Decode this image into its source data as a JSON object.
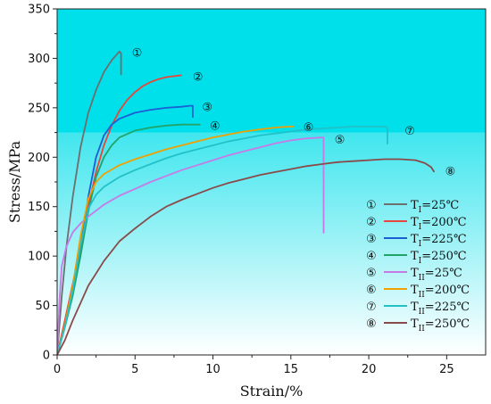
{
  "chart_data": {
    "type": "line",
    "xlabel": "Strain/%",
    "ylabel": "Stress/MPa",
    "xlim": [
      0,
      27.5
    ],
    "ylim": [
      0,
      350
    ],
    "xticks": [
      0,
      5,
      10,
      15,
      20,
      25
    ],
    "yticks": [
      0,
      50,
      100,
      150,
      200,
      250,
      300,
      350
    ],
    "background": {
      "top": "#00e0ea",
      "band_stress": 225,
      "bottom": "#ffffff"
    },
    "legend_position": "lower-right",
    "series": [
      {
        "marker": "①",
        "label_main": "T",
        "label_sub": "I",
        "label_rest": "=25℃",
        "color": "#6e6e6e",
        "x": [
          0,
          0.3,
          0.6,
          1.0,
          1.5,
          2.0,
          2.5,
          3.0,
          3.5,
          4.0,
          4.1,
          4.1
        ],
        "y": [
          0,
          60,
          110,
          160,
          210,
          245,
          268,
          286,
          298,
          307,
          305,
          283
        ],
        "marker_at": [
          4.8,
          307
        ]
      },
      {
        "marker": "②",
        "label_main": "T",
        "label_sub": "I",
        "label_rest": "=200℃",
        "color": "#e8453c",
        "x": [
          0,
          0.5,
          1.0,
          1.5,
          2.0,
          2.5,
          3.0,
          3.5,
          4.0,
          4.5,
          5.0,
          5.5,
          6.0,
          6.5,
          7.0,
          7.5,
          8.0
        ],
        "y": [
          0,
          35,
          72,
          110,
          150,
          185,
          212,
          232,
          247,
          258,
          266,
          272,
          276,
          279,
          281,
          282,
          283
        ],
        "marker_at": [
          8.7,
          283
        ]
      },
      {
        "marker": "③",
        "label_main": "T",
        "label_sub": "I",
        "label_rest": "=225℃",
        "color": "#1a5fd6",
        "x": [
          0,
          0.5,
          1.0,
          1.5,
          2.0,
          2.5,
          3.0,
          3.5,
          4.0,
          5.0,
          6.0,
          7.0,
          8.0,
          8.5,
          8.7,
          8.7
        ],
        "y": [
          0,
          30,
          65,
          108,
          160,
          200,
          222,
          233,
          239,
          245,
          248,
          250,
          251,
          252,
          252,
          240
        ],
        "marker_at": [
          9.3,
          252
        ]
      },
      {
        "marker": "④",
        "label_main": "T",
        "label_sub": "I",
        "label_rest": "=250℃",
        "color": "#20a46a",
        "x": [
          0,
          0.5,
          1.0,
          1.5,
          2.0,
          2.5,
          3.0,
          3.5,
          4.0,
          5.0,
          6.0,
          7.0,
          8.0,
          9.0,
          9.2
        ],
        "y": [
          0,
          28,
          60,
          100,
          145,
          180,
          200,
          212,
          220,
          227,
          230,
          232,
          233,
          233,
          233
        ],
        "marker_at": [
          9.8,
          233
        ]
      },
      {
        "marker": "⑤",
        "label_main": "T",
        "label_sub": "II",
        "label_rest": "=25℃",
        "color": "#c77ae6",
        "x": [
          0,
          0.15,
          0.3,
          0.6,
          1.0,
          1.5,
          2.0,
          3.0,
          4.0,
          5.0,
          6.0,
          7.0,
          8.0,
          9.0,
          10.0,
          11.0,
          12.0,
          13.0,
          14.0,
          15.0,
          16.0,
          17.0,
          17.1,
          17.1
        ],
        "y": [
          0,
          55,
          90,
          110,
          124,
          133,
          140,
          152,
          161,
          168,
          175,
          181,
          187,
          192,
          197,
          202,
          206,
          210,
          214,
          217,
          219,
          220,
          220,
          123
        ],
        "marker_at": [
          17.8,
          219
        ]
      },
      {
        "marker": "⑥",
        "label_main": "T",
        "label_sub": "II",
        "label_rest": "=200℃",
        "color": "#f0a000",
        "x": [
          0,
          0.5,
          1.0,
          1.5,
          2.0,
          2.5,
          3.0,
          4.0,
          5.0,
          6.0,
          7.0,
          8.0,
          9.0,
          10.0,
          11.0,
          12.0,
          13.0,
          14.0,
          15.0,
          15.2
        ],
        "y": [
          0,
          30,
          70,
          120,
          158,
          175,
          183,
          192,
          198,
          203,
          208,
          212,
          216,
          220,
          223,
          226,
          228,
          230,
          231,
          231
        ],
        "marker_at": [
          15.8,
          232
        ]
      },
      {
        "marker": "⑦",
        "label_main": "T",
        "label_sub": "II",
        "label_rest": "=225℃",
        "color": "#22c1c8",
        "x": [
          0,
          0.5,
          1.0,
          1.5,
          2.0,
          2.5,
          3.0,
          4.0,
          5.0,
          6.0,
          7.0,
          8.0,
          9.0,
          10.0,
          11.0,
          12.0,
          13.0,
          14.0,
          15.0,
          16.0,
          17.0,
          18.0,
          19.0,
          20.0,
          21.0,
          21.2,
          21.2
        ],
        "y": [
          0,
          28,
          65,
          110,
          148,
          162,
          170,
          180,
          187,
          193,
          199,
          204,
          208,
          212,
          216,
          219,
          222,
          224,
          226,
          228,
          229,
          230,
          231,
          231,
          231,
          230,
          213
        ],
        "marker_at": [
          22.3,
          228
        ]
      },
      {
        "marker": "⑧",
        "label_main": "T",
        "label_sub": "II",
        "label_rest": "=250℃",
        "color": "#8b4a4a",
        "x": [
          0,
          0.5,
          1.0,
          2.0,
          3.0,
          4.0,
          5.0,
          6.0,
          7.0,
          8.0,
          9.0,
          10.0,
          11.0,
          12.0,
          13.0,
          14.0,
          15.0,
          16.0,
          17.0,
          18.0,
          19.0,
          20.0,
          21.0,
          22.0,
          23.0,
          23.6,
          24.0,
          24.2
        ],
        "y": [
          0,
          15,
          35,
          70,
          95,
          115,
          128,
          140,
          150,
          157,
          163,
          169,
          174,
          178,
          182,
          185,
          188,
          191,
          193,
          195,
          196,
          197,
          198,
          198,
          197,
          194,
          190,
          185
        ],
        "marker_at": [
          24.9,
          187
        ]
      }
    ]
  }
}
